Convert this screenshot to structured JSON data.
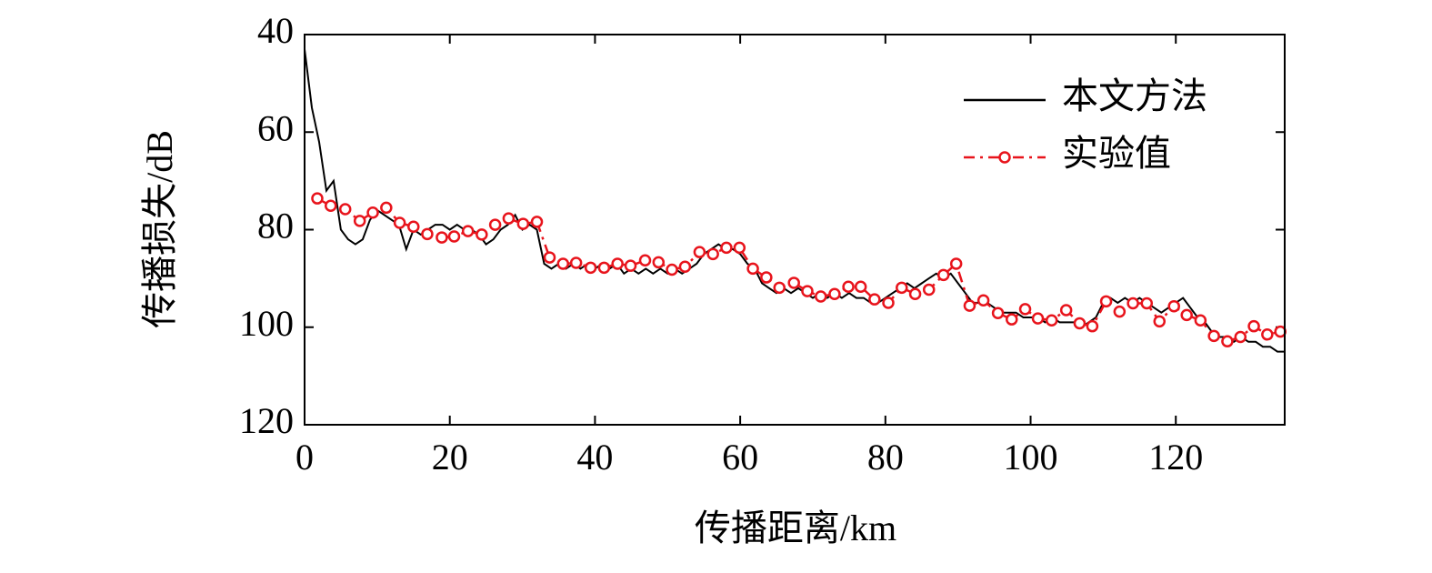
{
  "chart_data": {
    "type": "line",
    "xlabel": "传播距离/km",
    "ylabel": "传播损失/dB",
    "xlim": [
      0,
      135
    ],
    "ylim": [
      40,
      120
    ],
    "y_inverted": true,
    "xticks": [
      0,
      20,
      40,
      60,
      80,
      100,
      120
    ],
    "yticks": [
      40,
      60,
      80,
      100,
      120
    ],
    "legend": "upper right",
    "series": [
      {
        "name": "本文方法",
        "color": "#000000",
        "style": "solid",
        "marker": "none",
        "x": [
          0,
          1,
          2,
          3,
          4,
          5,
          6,
          7,
          8,
          9,
          10,
          11,
          12,
          13,
          14,
          15,
          16,
          17,
          18,
          19,
          20,
          21,
          22,
          23,
          24,
          25,
          26,
          27,
          28,
          29,
          30,
          31,
          32,
          33,
          34,
          35,
          36,
          37,
          38,
          39,
          40,
          41,
          42,
          43,
          44,
          45,
          46,
          47,
          48,
          49,
          50,
          51,
          52,
          53,
          54,
          55,
          56,
          57,
          58,
          59,
          60,
          61,
          62,
          63,
          64,
          65,
          66,
          67,
          68,
          69,
          70,
          71,
          72,
          73,
          74,
          75,
          76,
          77,
          78,
          79,
          80,
          81,
          82,
          83,
          84,
          85,
          86,
          87,
          88,
          89,
          90,
          91,
          92,
          93,
          94,
          95,
          96,
          97,
          98,
          99,
          100,
          101,
          102,
          103,
          104,
          105,
          106,
          107,
          108,
          109,
          110,
          111,
          112,
          113,
          114,
          115,
          116,
          117,
          118,
          119,
          120,
          121,
          122,
          123,
          124,
          125,
          126,
          127,
          128,
          129,
          130,
          131,
          132,
          133,
          134,
          135
        ],
        "values": [
          43,
          55,
          62,
          72,
          70,
          80,
          82,
          83,
          82,
          78,
          76,
          77,
          78,
          79,
          84,
          80,
          81,
          80,
          79,
          79,
          80,
          79,
          80,
          80,
          81,
          83,
          82,
          80,
          79,
          77,
          80,
          79,
          80,
          87,
          88,
          87,
          88,
          87,
          88,
          87,
          88,
          87,
          88,
          87,
          89,
          88,
          89,
          88,
          89,
          88,
          89,
          88,
          89,
          88,
          87,
          85,
          84,
          83,
          84,
          84,
          85,
          87,
          88,
          91,
          92,
          93,
          92,
          93,
          92,
          93,
          94,
          93,
          94,
          93,
          94,
          93,
          94,
          94,
          95,
          95,
          94,
          93,
          92,
          91,
          92,
          91,
          90,
          89,
          90,
          89,
          91,
          93,
          95,
          95,
          95,
          96,
          97,
          97,
          97,
          98,
          98,
          98,
          99,
          98,
          99,
          99,
          99,
          100,
          99,
          98,
          95,
          94,
          95,
          94,
          95,
          94,
          95,
          96,
          97,
          96,
          95,
          94,
          96,
          98,
          99,
          101,
          102,
          102,
          103,
          102,
          103,
          103,
          104,
          104,
          105,
          105
        ]
      },
      {
        "name": "实验值",
        "color": "#e8141c",
        "style": "dashed",
        "marker": "circle",
        "x": [
          1.75,
          3.6,
          5.6,
          7.6,
          9.4,
          11.25,
          13.1,
          15,
          16.9,
          18.9,
          20.6,
          22.5,
          24.4,
          26.25,
          28.1,
          30.1,
          32,
          33.75,
          35.6,
          37.4,
          39.4,
          41.25,
          43.1,
          44.9,
          46.9,
          48.75,
          50.6,
          52.4,
          54.4,
          56.25,
          58.1,
          59.9,
          61.75,
          63.6,
          65.4,
          67.4,
          69.25,
          71.1,
          73,
          74.9,
          76.6,
          78.5,
          80.4,
          82.25,
          84.1,
          86,
          88,
          89.75,
          91.6,
          93.5,
          95.5,
          97.4,
          99.25,
          101,
          102.9,
          104.9,
          106.75,
          108.5,
          110.4,
          112.25,
          114.1,
          116,
          117.75,
          119.75,
          121.5,
          123.4,
          125.25,
          127.1,
          128.9,
          130.75,
          132.6,
          134.4
        ],
        "values": [
          73.6,
          75.1,
          75.8,
          78.2,
          76.5,
          75.5,
          78.6,
          79.4,
          80.9,
          81.6,
          81.4,
          80.3,
          81,
          79,
          77.7,
          78.8,
          78.4,
          85.7,
          87,
          86.8,
          87.8,
          87.8,
          87,
          87.4,
          86.3,
          86.7,
          88.2,
          87.6,
          84.6,
          85,
          83.7,
          83.7,
          88,
          89.8,
          91.9,
          90.9,
          92.6,
          93.7,
          93.2,
          91.7,
          91.7,
          94.3,
          95,
          91.9,
          93.2,
          92.3,
          89.3,
          87,
          95.6,
          94.5,
          97.1,
          98.4,
          96.3,
          98.2,
          98.6,
          96.5,
          99.2,
          99.8,
          94.7,
          96.8,
          95.1,
          95.1,
          98.8,
          95.7,
          97.5,
          98.6,
          101.8,
          102.9,
          102,
          99.8,
          101.5,
          100.9
        ]
      }
    ]
  }
}
